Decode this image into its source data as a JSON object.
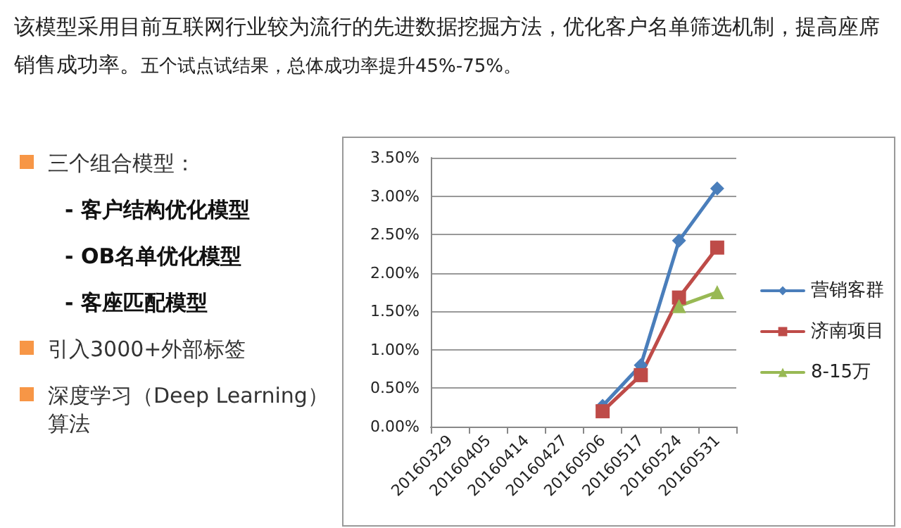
{
  "chart_data": {
    "type": "line",
    "title": "该模型采用目前互联网行业较为流行的先进数据挖掘方法，优化客户名单筛选机制，提高座席销售成功率。",
    "subtitle": "五个试点试结果，总体成功率提升45%-75%。",
    "annotations": [
      "三个组合模型：",
      "- 客户结构优化模型",
      "- OB名单优化模型",
      "- 客座匹配模型",
      "引入3000+外部标签",
      "深度学习（Deep Learning）算法"
    ],
    "categories": [
      "20160329",
      "20160405",
      "20160414",
      "20160427",
      "20160506",
      "20160517",
      "20160524",
      "20160531"
    ],
    "series": [
      {
        "name": "营销客群",
        "color": "#4a7ebb",
        "marker": "diamond",
        "values": [
          null,
          null,
          null,
          null,
          0.27,
          0.8,
          2.42,
          3.1
        ]
      },
      {
        "name": "济南项目",
        "color": "#be4b48",
        "marker": "square",
        "values": [
          null,
          null,
          null,
          null,
          0.2,
          0.67,
          1.68,
          2.33
        ]
      },
      {
        "name": "8-15万",
        "color": "#98b954",
        "marker": "triangle",
        "values": [
          null,
          null,
          null,
          null,
          null,
          null,
          1.57,
          1.75
        ]
      }
    ],
    "ylim": [
      0,
      3.5
    ],
    "yticks": [
      {
        "value": 0,
        "label": "0.00%"
      },
      {
        "value": 0.5,
        "label": "0.50%"
      },
      {
        "value": 1,
        "label": "1.00%"
      },
      {
        "value": 1.5,
        "label": "1.50%"
      },
      {
        "value": 2,
        "label": "2.00%"
      },
      {
        "value": 2.5,
        "label": "2.50%"
      },
      {
        "value": 3,
        "label": "3.00%"
      },
      {
        "value": 3.5,
        "label": "3.50%"
      }
    ],
    "grid": "y",
    "legend": "right",
    "line_style": "solid"
  }
}
